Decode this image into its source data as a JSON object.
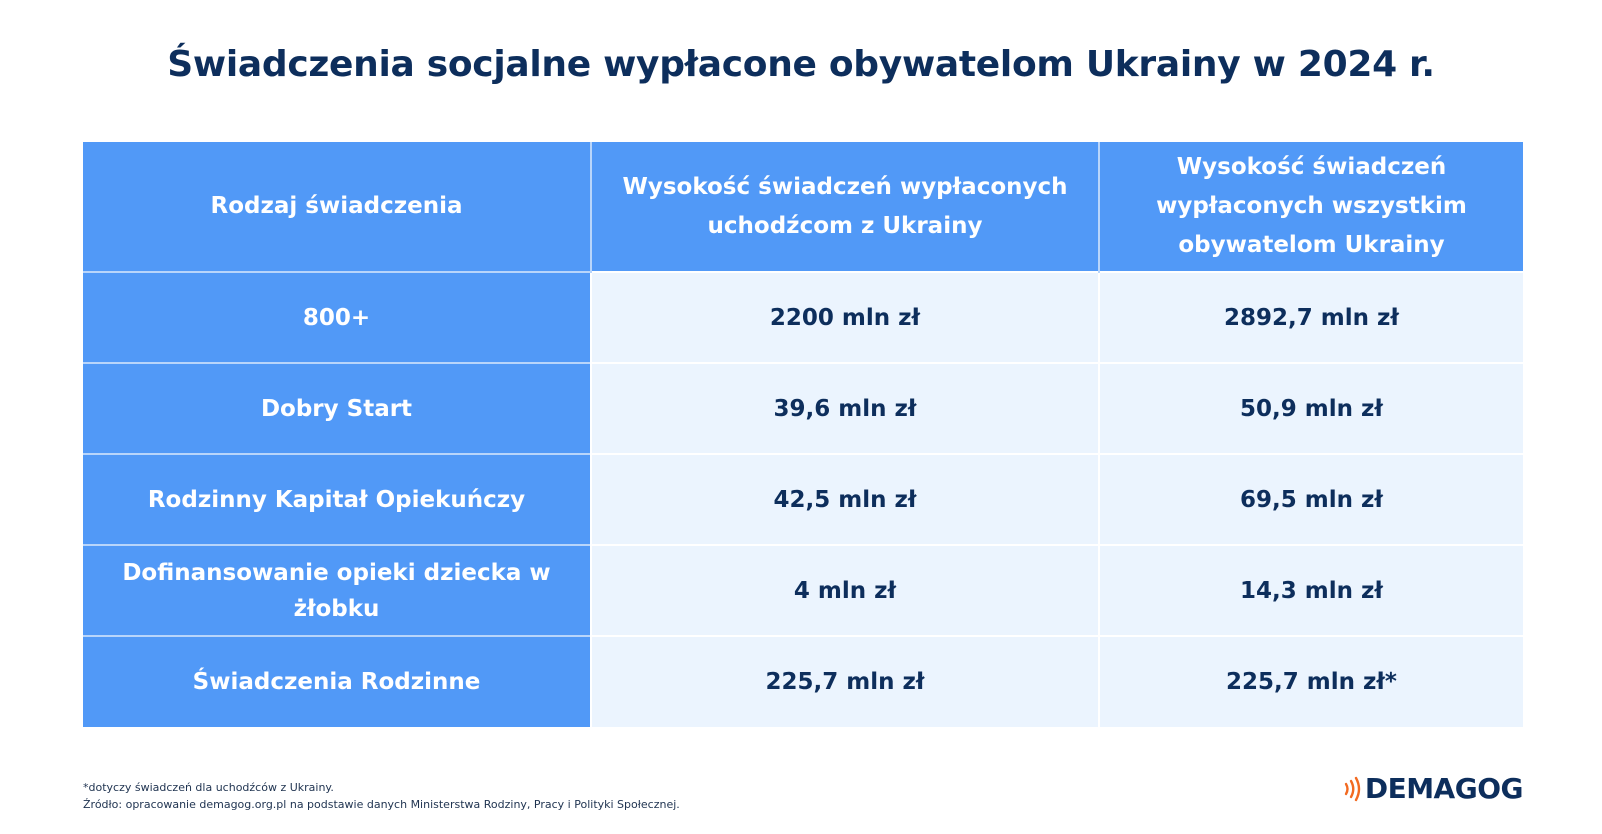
{
  "title": "Świadczenia socjalne wypłacone obywatelom Ukrainy w 2024 r.",
  "chart_data": {
    "type": "table",
    "title": "Świadczenia socjalne wypłacone obywatelom Ukrainy w 2024 r.",
    "columns": [
      "Rodzaj świadczenia",
      "Wysokość świadczeń wypłaconych uchodźcom z Ukrainy",
      "Wysokość świadczeń wypłaconych wszystkim obywatelom Ukrainy"
    ],
    "rows": [
      {
        "label": "800+",
        "refugees": "2200 mln zł",
        "all_citizens": "2892,7 mln zł"
      },
      {
        "label": "Dobry Start",
        "refugees": "39,6 mln zł",
        "all_citizens": "50,9 mln zł"
      },
      {
        "label": "Rodzinny Kapitał Opiekuńczy",
        "refugees": "42,5 mln zł",
        "all_citizens": "69,5 mln zł"
      },
      {
        "label": "Dofinansowanie opieki dziecka w żłobku",
        "refugees": "4 mln zł",
        "all_citizens": "14,3 mln zł"
      },
      {
        "label": "Świadczenia Rodzinne",
        "refugees": "225,7 mln zł",
        "all_citizens": "225,7 mln zł*"
      }
    ],
    "values_mln_pln": {
      "refugees": [
        2200,
        39.6,
        42.5,
        4,
        225.7
      ],
      "all_citizens": [
        2892.7,
        50.9,
        69.5,
        14.3,
        225.7
      ]
    },
    "unit": "mln zł"
  },
  "footnote": {
    "asterisk": "*dotyczy świadczeń dla uchodźców z Ukrainy.",
    "source": "Źródło: opracowanie demagog.org.pl na podstawie danych Ministerstwa Rodziny, Pracy i Polityki Społecznej."
  },
  "logo": {
    "text": "DEMAGOG",
    "icon": "sound-waves-icon",
    "icon_color": "#f26a21"
  },
  "colors": {
    "header_blue": "#5199f7",
    "cell_light": "#ebf4fe",
    "navy_text": "#0d2e5c"
  }
}
